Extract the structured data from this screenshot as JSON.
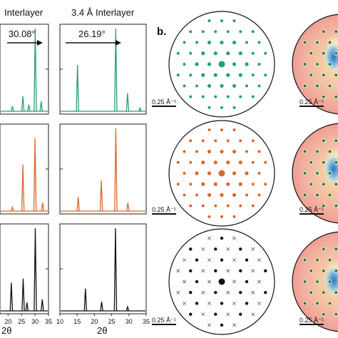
{
  "headers": {
    "left": "Interlayer",
    "middle": "3.4 Å Interlayer"
  },
  "panel_b_label": "b.",
  "scale_bar_label": "0.25 Å⁻¹",
  "annotations": {
    "left_angle": "30.08°",
    "middle_angle": "26.19°"
  },
  "colors": {
    "green": "#2a9d75",
    "orange": "#d8692e",
    "black": "#111111"
  },
  "chart_data": [
    {
      "type": "line",
      "panel": "left-column-row-1",
      "color": "#2a9d75",
      "xlim": [
        0,
        35
      ],
      "x_ticks": [],
      "peaks": [
        {
          "x": 30.08,
          "y": 1.0
        },
        {
          "x": 32.3,
          "y": 0.12
        },
        {
          "x": 25.5,
          "y": 0.18
        },
        {
          "x": 27.7,
          "y": 0.08
        },
        {
          "x": 21.6,
          "y": 0.06
        }
      ]
    },
    {
      "type": "line",
      "panel": "middle-column-row-1",
      "color": "#2a9d75",
      "xlim": [
        0,
        35
      ],
      "x_ticks": [],
      "peaks": [
        {
          "x": 26.19,
          "y": 1.0
        },
        {
          "x": 15.1,
          "y": 0.56
        },
        {
          "x": 29.6,
          "y": 0.22
        },
        {
          "x": 33.2,
          "y": 0.04
        }
      ]
    },
    {
      "type": "line",
      "panel": "left-column-row-2",
      "color": "#d8692e",
      "xlim": [
        0,
        35
      ],
      "x_ticks": [],
      "peaks": [
        {
          "x": 30.0,
          "y": 0.88
        },
        {
          "x": 25.5,
          "y": 0.56
        },
        {
          "x": 32.8,
          "y": 0.1
        },
        {
          "x": 21.6,
          "y": 0.05
        }
      ]
    },
    {
      "type": "line",
      "panel": "middle-column-row-2",
      "color": "#d8692e",
      "xlim": [
        0,
        35
      ],
      "x_ticks": [],
      "peaks": [
        {
          "x": 26.2,
          "y": 1.0
        },
        {
          "x": 22.0,
          "y": 0.37
        },
        {
          "x": 15.3,
          "y": 0.17
        },
        {
          "x": 29.7,
          "y": 0.1
        }
      ]
    },
    {
      "type": "line",
      "panel": "left-column-row-3",
      "color": "#111111",
      "xlim": [
        0,
        35
      ],
      "x_ticks": [
        "20",
        "25",
        "30",
        "35"
      ],
      "xlabel": "2θ",
      "peaks": [
        {
          "x": 30.1,
          "y": 1.0
        },
        {
          "x": 21.2,
          "y": 0.34
        },
        {
          "x": 25.6,
          "y": 0.39
        },
        {
          "x": 27.0,
          "y": 0.1
        },
        {
          "x": 32.7,
          "y": 0.14
        }
      ]
    },
    {
      "type": "line",
      "panel": "middle-column-row-3",
      "color": "#111111",
      "xlim": [
        10,
        35
      ],
      "x_ticks": [
        "10",
        "15",
        "20",
        "25",
        "30",
        "35"
      ],
      "xlabel": "2θ",
      "peaks": [
        {
          "x": 26.1,
          "y": 1.0
        },
        {
          "x": 17.4,
          "y": 0.27
        },
        {
          "x": 22.1,
          "y": 0.11
        },
        {
          "x": 29.6,
          "y": 0.05
        }
      ]
    }
  ]
}
